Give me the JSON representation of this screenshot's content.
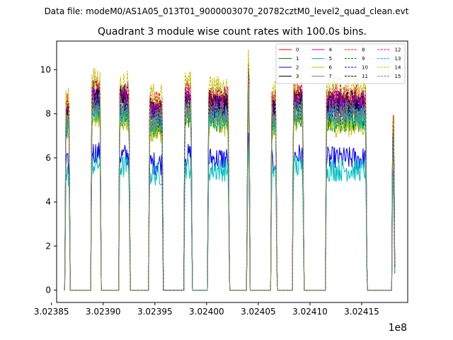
{
  "figure": {
    "suptitle": "Data file: modeM0/AS1A05_013T01_9000003070_20782cztM0_level2_quad_clean.evt"
  },
  "chart_data": {
    "type": "line",
    "title": "Quadrant 3 module wise count rates with 100.0s bins.",
    "xlabel": "",
    "ylabel": "",
    "x_offset_label": "1e8",
    "xlim": [
      3.023855,
      3.0241945
    ],
    "ylim": [
      -0.56,
      11.3
    ],
    "x_ticks": [
      3.02385,
      3.0239,
      3.02395,
      3.024,
      3.02405,
      3.0241,
      3.02415
    ],
    "x_tick_labels": [
      "3.02385",
      "3.02390",
      "3.02395",
      "3.02400",
      "3.02405",
      "3.02410",
      "3.02415"
    ],
    "y_ticks": [
      0,
      2,
      4,
      6,
      8,
      10
    ],
    "y_tick_labels": [
      "0",
      "2",
      "4",
      "6",
      "8",
      "10"
    ],
    "grid": false,
    "legend_location": "top-right",
    "legend_columns": 4,
    "data_segments": [
      {
        "start": 3.023863,
        "end": 3.023868,
        "peak": 8.0
      },
      {
        "start": 3.023888,
        "end": 3.023898,
        "peak": 8.8
      },
      {
        "start": 3.023915,
        "end": 3.023926,
        "peak": 8.6
      },
      {
        "start": 3.023944,
        "end": 3.023958,
        "peak": 8.1
      },
      {
        "start": 3.023978,
        "end": 3.023986,
        "peak": 8.6
      },
      {
        "start": 3.024001,
        "end": 3.024022,
        "peak": 8.4
      },
      {
        "start": 3.024039,
        "end": 3.024042,
        "peak": 9.5
      },
      {
        "start": 3.024062,
        "end": 3.024068,
        "peak": 8.2
      },
      {
        "start": 3.024083,
        "end": 3.024094,
        "peak": 8.6
      },
      {
        "start": 3.024115,
        "end": 3.024155,
        "peak": 8.4
      },
      {
        "start": 3.024179,
        "end": 3.024182,
        "peak": 7.3
      }
    ],
    "series": [
      {
        "name": "0",
        "color": "#ff0000",
        "dash": "solid",
        "level": 8.3
      },
      {
        "name": "1",
        "color": "#008000",
        "dash": "solid",
        "level": 7.6
      },
      {
        "name": "2",
        "color": "#0000ff",
        "dash": "solid",
        "level": 5.9
      },
      {
        "name": "3",
        "color": "#000000",
        "dash": "solid",
        "level": 8.5
      },
      {
        "name": "4",
        "color": "#bf00bf",
        "dash": "solid",
        "level": 8.1
      },
      {
        "name": "5",
        "color": "#00bfbf",
        "dash": "solid",
        "level": 5.4
      },
      {
        "name": "6",
        "color": "#bfbf00",
        "dash": "solid",
        "level": 7.4
      },
      {
        "name": "7",
        "color": "#808080",
        "dash": "solid",
        "level": 7.9
      },
      {
        "name": "8",
        "color": "#ff0000",
        "dash": "dashed",
        "level": 8.7
      },
      {
        "name": "9",
        "color": "#008000",
        "dash": "dashed",
        "level": 7.8
      },
      {
        "name": "10",
        "color": "#0000ff",
        "dash": "dashed",
        "level": 8.2
      },
      {
        "name": "11",
        "color": "#000000",
        "dash": "dashed",
        "level": 8.4
      },
      {
        "name": "12",
        "color": "#bf00bf",
        "dash": "dashed",
        "level": 8.6
      },
      {
        "name": "13",
        "color": "#00bfbf",
        "dash": "dashed",
        "level": 7.7
      },
      {
        "name": "14",
        "color": "#bfbf00",
        "dash": "dashed",
        "level": 9.1
      },
      {
        "name": "15",
        "color": "#808080",
        "dash": "dashed",
        "level": 8.0
      }
    ]
  }
}
